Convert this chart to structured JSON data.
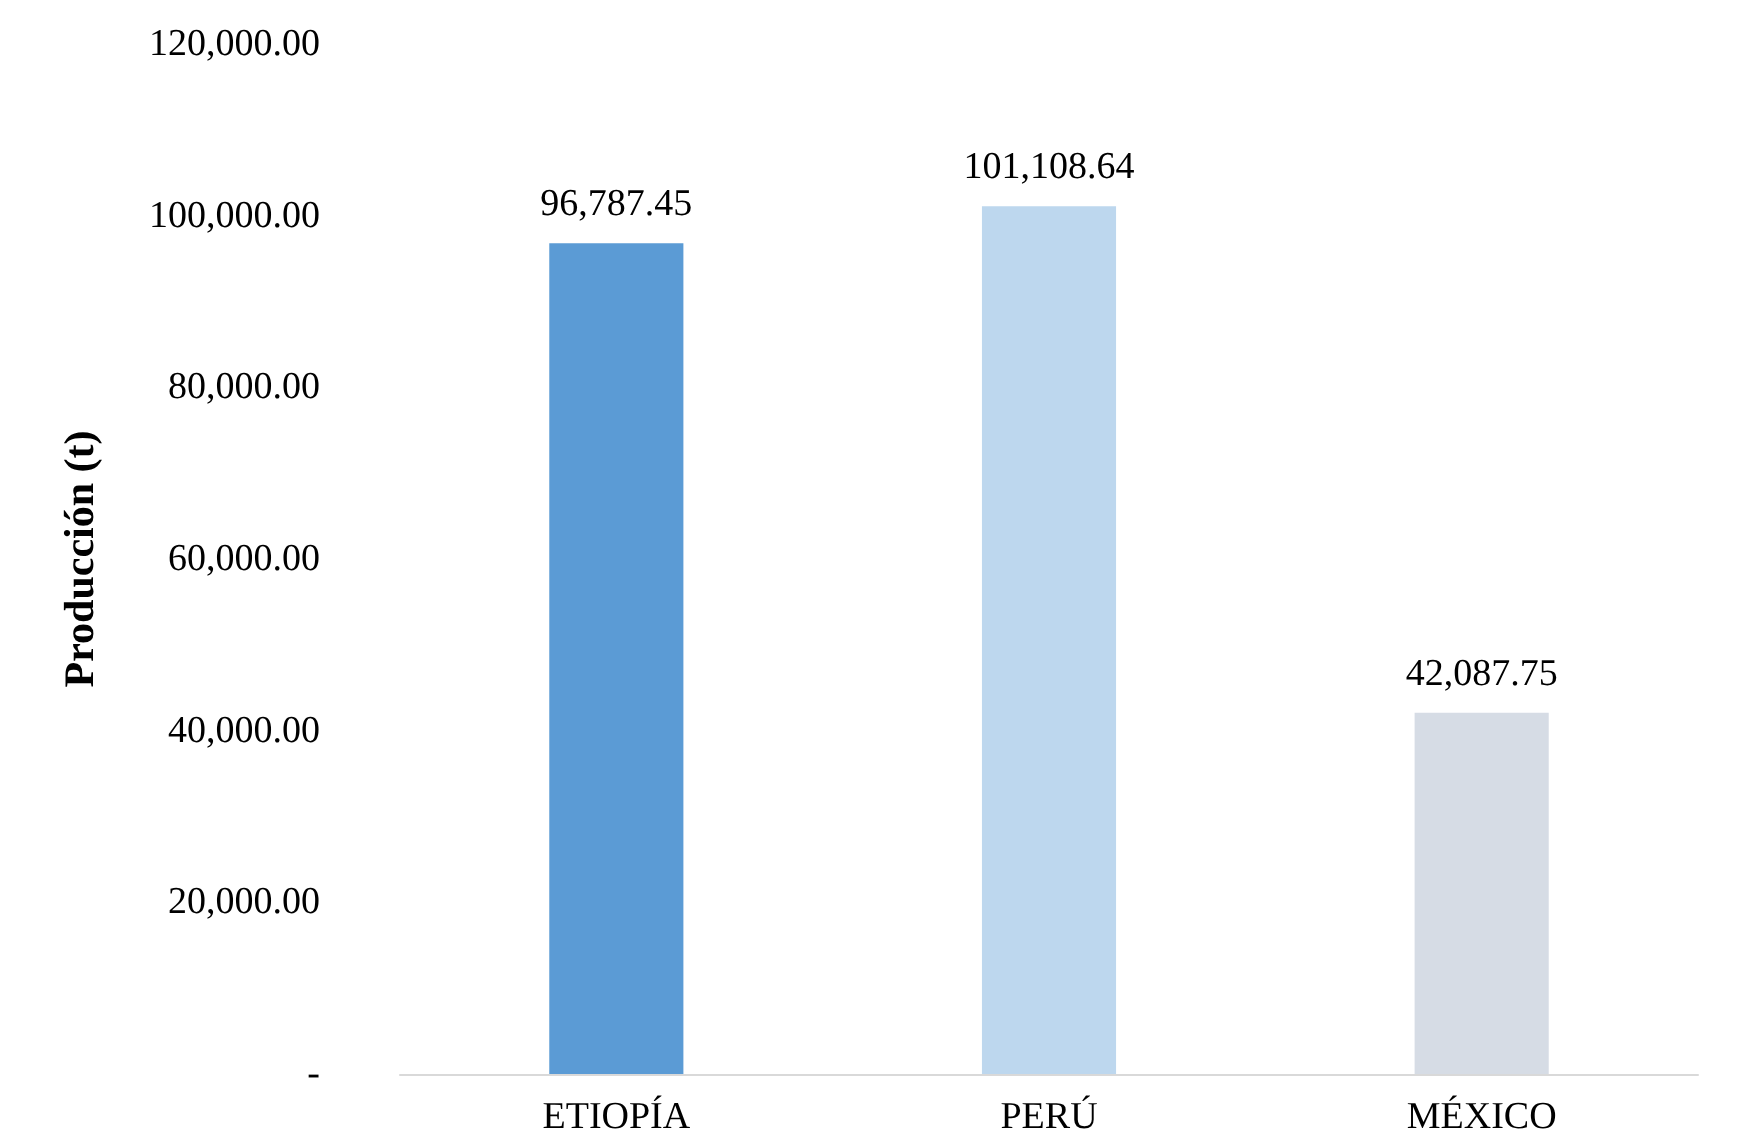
{
  "chart_data": {
    "type": "bar",
    "ylabel": "Producción (t)",
    "categories": [
      "ETIOPÍA",
      "PERÚ",
      "MÉXICO"
    ],
    "values": [
      96787.45,
      101108.64,
      42087.75
    ],
    "colors": [
      "#5b9bd5",
      "#bdd7ee",
      "#d6dce5"
    ],
    "value_labels": [
      "96,787.45",
      "101,108.64",
      "42,087.75"
    ],
    "ylim": [
      0,
      120000
    ],
    "yticks": [
      {
        "value": 0,
        "label": "-"
      },
      {
        "value": 20000,
        "label": "20,000.00"
      },
      {
        "value": 40000,
        "label": "40,000.00"
      },
      {
        "value": 60000,
        "label": "60,000.00"
      },
      {
        "value": 80000,
        "label": "80,000.00"
      },
      {
        "value": 100000,
        "label": "100,000.00"
      },
      {
        "value": 120000,
        "label": "120,000.00"
      }
    ],
    "grid": false
  }
}
